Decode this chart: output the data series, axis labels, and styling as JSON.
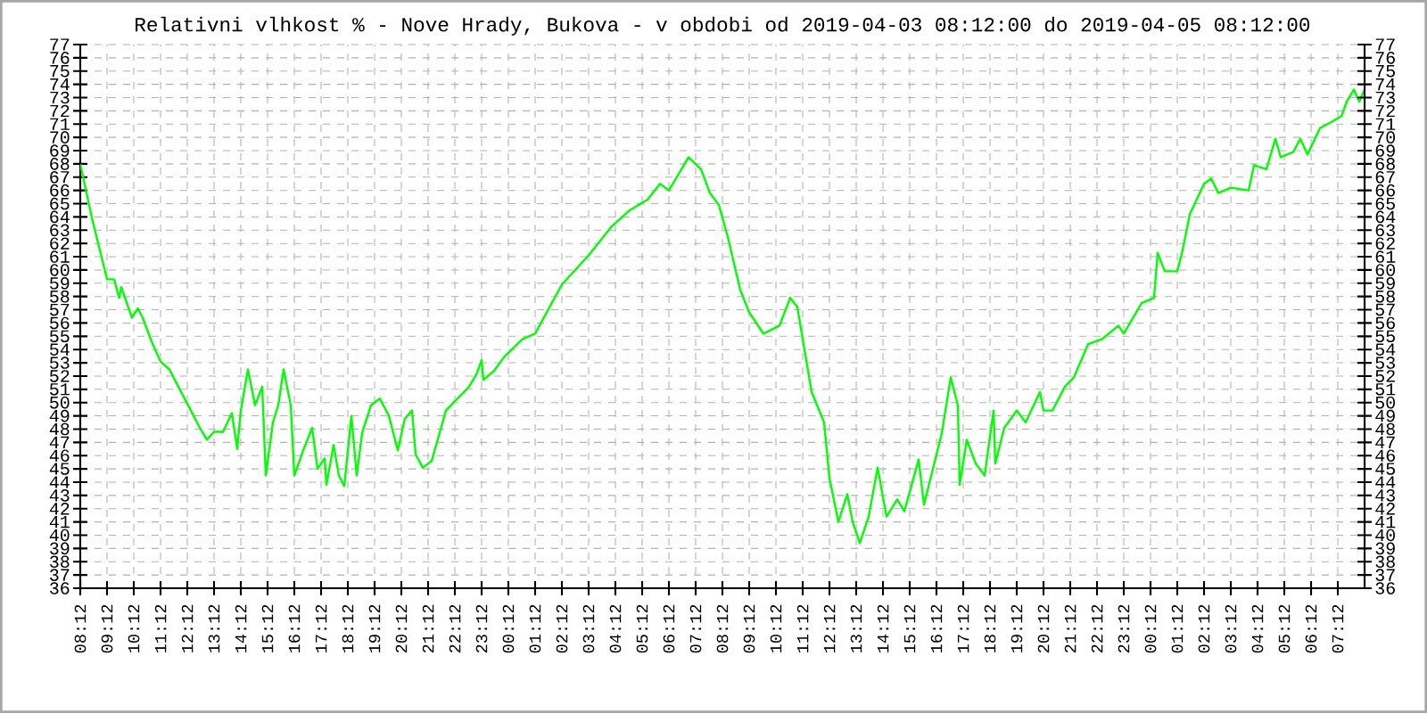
{
  "chart_data": {
    "type": "line",
    "title": "Relativni vlhkost % - Nove Hrady, Bukova - v obdobi od 2019-04-03 08:12:00 do 2019-04-05 08:12:00",
    "series": [
      {
        "color": "#00ff00",
        "x": [
          "2019-04-03T08:12",
          "2019-04-03T08:39",
          "2019-04-03T09:12",
          "2019-04-03T09:28",
          "2019-04-03T09:39",
          "2019-04-03T09:44",
          "2019-04-03T10:08",
          "2019-04-03T10:21",
          "2019-04-03T10:32",
          "2019-04-03T10:52",
          "2019-04-03T11:04",
          "2019-04-03T11:12",
          "2019-04-03T11:32",
          "2019-04-03T11:52",
          "2019-04-03T12:20",
          "2019-04-03T12:40",
          "2019-04-03T12:56",
          "2019-04-03T13:12",
          "2019-04-03T13:32",
          "2019-04-03T13:52",
          "2019-04-03T14:04",
          "2019-04-03T14:12",
          "2019-04-03T14:28",
          "2019-04-03T14:44",
          "2019-04-03T15:00",
          "2019-04-03T15:08",
          "2019-04-03T15:24",
          "2019-04-03T15:36",
          "2019-04-03T15:48",
          "2019-04-03T16:04",
          "2019-04-03T16:12",
          "2019-04-03T16:32",
          "2019-04-03T16:52",
          "2019-04-03T17:04",
          "2019-04-03T17:20",
          "2019-04-03T17:24",
          "2019-04-03T17:40",
          "2019-04-03T17:52",
          "2019-04-03T18:04",
          "2019-04-03T18:20",
          "2019-04-03T18:32",
          "2019-04-03T18:44",
          "2019-04-03T19:04",
          "2019-04-03T19:24",
          "2019-04-03T19:44",
          "2019-04-03T20:04",
          "2019-04-03T20:20",
          "2019-04-03T20:36",
          "2019-04-03T20:44",
          "2019-04-03T21:00",
          "2019-04-03T21:20",
          "2019-04-03T21:52",
          "2019-04-03T22:12",
          "2019-04-03T22:44",
          "2019-04-03T23:00",
          "2019-04-03T23:12",
          "2019-04-03T23:16",
          "2019-04-03T23:40",
          "2019-04-04T00:04",
          "2019-04-04T00:44",
          "2019-04-04T01:12",
          "2019-04-04T02:12",
          "2019-04-04T03:12",
          "2019-04-04T04:04",
          "2019-04-04T04:44",
          "2019-04-04T05:24",
          "2019-04-04T05:52",
          "2019-04-04T06:12",
          "2019-04-04T06:56",
          "2019-04-04T07:24",
          "2019-04-04T07:44",
          "2019-04-04T08:04",
          "2019-04-04T08:24",
          "2019-04-04T08:52",
          "2019-04-04T09:12",
          "2019-04-04T09:44",
          "2019-04-04T10:20",
          "2019-04-04T10:44",
          "2019-04-04T11:00",
          "2019-04-04T11:12",
          "2019-04-04T11:32",
          "2019-04-04T12:00",
          "2019-04-04T12:12",
          "2019-04-04T12:32",
          "2019-04-04T12:52",
          "2019-04-04T13:04",
          "2019-04-04T13:20",
          "2019-04-04T13:40",
          "2019-04-04T14:00",
          "2019-04-04T14:20",
          "2019-04-04T14:44",
          "2019-04-04T15:00",
          "2019-04-04T15:32",
          "2019-04-04T15:44",
          "2019-04-04T16:04",
          "2019-04-04T16:24",
          "2019-04-04T16:44",
          "2019-04-04T17:00",
          "2019-04-04T17:04",
          "2019-04-04T17:20",
          "2019-04-04T17:40",
          "2019-04-04T18:00",
          "2019-04-04T18:20",
          "2019-04-04T18:24",
          "2019-04-04T18:44",
          "2019-04-04T19:12",
          "2019-04-04T19:32",
          "2019-04-04T20:04",
          "2019-04-04T20:12",
          "2019-04-04T20:32",
          "2019-04-04T21:00",
          "2019-04-04T21:20",
          "2019-04-04T21:52",
          "2019-04-04T22:24",
          "2019-04-04T23:00",
          "2019-04-04T23:12",
          "2019-04-04T23:52",
          "2019-04-05T00:20",
          "2019-04-05T00:28",
          "2019-04-05T00:44",
          "2019-04-05T01:12",
          "2019-04-05T01:24",
          "2019-04-05T01:40",
          "2019-04-05T02:12",
          "2019-04-05T02:28",
          "2019-04-05T02:44",
          "2019-04-05T03:12",
          "2019-04-05T03:52",
          "2019-04-05T04:04",
          "2019-04-05T04:32",
          "2019-04-05T04:52",
          "2019-04-05T05:04",
          "2019-04-05T05:32",
          "2019-04-05T05:48",
          "2019-04-05T06:04",
          "2019-04-05T06:32",
          "2019-04-05T07:00",
          "2019-04-05T07:20",
          "2019-04-05T07:32",
          "2019-04-05T07:48",
          "2019-04-05T08:00",
          "2019-04-05T08:12"
        ],
        "values": [
          68.0,
          63.8,
          59.3,
          59.3,
          57.9,
          58.7,
          56.4,
          57.1,
          56.4,
          54.6,
          53.7,
          53.1,
          52.5,
          51.2,
          49.4,
          48.1,
          47.2,
          47.8,
          47.8,
          49.2,
          46.5,
          49.4,
          52.5,
          49.8,
          51.2,
          44.5,
          48.5,
          49.8,
          52.5,
          49.8,
          44.5,
          46.4,
          48.1,
          45.0,
          45.8,
          43.8,
          46.8,
          44.5,
          43.7,
          49.0,
          44.5,
          47.7,
          49.8,
          50.3,
          49.0,
          46.4,
          48.8,
          49.4,
          46.1,
          45.1,
          45.6,
          49.4,
          50.1,
          51.2,
          52.1,
          53.2,
          51.7,
          52.4,
          53.5,
          54.8,
          55.2,
          58.9,
          61.1,
          63.3,
          64.5,
          65.3,
          66.5,
          66.0,
          68.5,
          67.6,
          65.8,
          64.9,
          62.5,
          58.5,
          56.8,
          55.2,
          55.8,
          57.9,
          57.2,
          54.8,
          50.8,
          48.5,
          44.3,
          41.0,
          43.1,
          41.0,
          39.4,
          41.4,
          45.1,
          41.4,
          42.7,
          41.8,
          45.7,
          42.3,
          45.0,
          47.7,
          51.9,
          49.8,
          43.8,
          47.2,
          45.4,
          44.5,
          49.4,
          45.4,
          48.1,
          49.4,
          48.5,
          50.8,
          49.4,
          49.4,
          51.2,
          51.9,
          54.4,
          54.8,
          55.8,
          55.2,
          57.5,
          57.9,
          61.3,
          59.9,
          59.9,
          61.5,
          64.2,
          66.5,
          66.9,
          65.8,
          66.2,
          66.0,
          67.9,
          67.6,
          69.9,
          68.5,
          68.9,
          69.9,
          68.7,
          70.7,
          71.2,
          71.6,
          72.7,
          73.6,
          72.7,
          73.6
        ]
      }
    ],
    "xlim": [
      "2019-04-03T08:12",
      "2019-04-05T08:12"
    ],
    "xticks": [
      {
        "value": "2019-04-03T08:12",
        "label": "08:12"
      },
      {
        "value": "2019-04-03T09:12",
        "label": "09:12"
      },
      {
        "value": "2019-04-03T10:12",
        "label": "10:12"
      },
      {
        "value": "2019-04-03T11:12",
        "label": "11:12"
      },
      {
        "value": "2019-04-03T12:12",
        "label": "12:12"
      },
      {
        "value": "2019-04-03T13:12",
        "label": "13:12"
      },
      {
        "value": "2019-04-03T14:12",
        "label": "14:12"
      },
      {
        "value": "2019-04-03T15:12",
        "label": "15:12"
      },
      {
        "value": "2019-04-03T16:12",
        "label": "16:12"
      },
      {
        "value": "2019-04-03T17:12",
        "label": "17:12"
      },
      {
        "value": "2019-04-03T18:12",
        "label": "18:12"
      },
      {
        "value": "2019-04-03T19:12",
        "label": "19:12"
      },
      {
        "value": "2019-04-03T20:12",
        "label": "20:12"
      },
      {
        "value": "2019-04-03T21:12",
        "label": "21:12"
      },
      {
        "value": "2019-04-03T22:12",
        "label": "22:12"
      },
      {
        "value": "2019-04-03T23:12",
        "label": "23:12"
      },
      {
        "value": "2019-04-04T00:12",
        "label": "00:12"
      },
      {
        "value": "2019-04-04T01:12",
        "label": "01:12"
      },
      {
        "value": "2019-04-04T02:12",
        "label": "02:12"
      },
      {
        "value": "2019-04-04T03:12",
        "label": "03:12"
      },
      {
        "value": "2019-04-04T04:12",
        "label": "04:12"
      },
      {
        "value": "2019-04-04T05:12",
        "label": "05:12"
      },
      {
        "value": "2019-04-04T06:12",
        "label": "06:12"
      },
      {
        "value": "2019-04-04T07:12",
        "label": "07:12"
      },
      {
        "value": "2019-04-04T08:12",
        "label": "08:12"
      },
      {
        "value": "2019-04-04T09:12",
        "label": "09:12"
      },
      {
        "value": "2019-04-04T10:12",
        "label": "10:12"
      },
      {
        "value": "2019-04-04T11:12",
        "label": "11:12"
      },
      {
        "value": "2019-04-04T12:12",
        "label": "12:12"
      },
      {
        "value": "2019-04-04T13:12",
        "label": "13:12"
      },
      {
        "value": "2019-04-04T14:12",
        "label": "14:12"
      },
      {
        "value": "2019-04-04T15:12",
        "label": "15:12"
      },
      {
        "value": "2019-04-04T16:12",
        "label": "16:12"
      },
      {
        "value": "2019-04-04T17:12",
        "label": "17:12"
      },
      {
        "value": "2019-04-04T18:12",
        "label": "18:12"
      },
      {
        "value": "2019-04-04T19:12",
        "label": "19:12"
      },
      {
        "value": "2019-04-04T20:12",
        "label": "20:12"
      },
      {
        "value": "2019-04-04T21:12",
        "label": "21:12"
      },
      {
        "value": "2019-04-04T22:12",
        "label": "22:12"
      },
      {
        "value": "2019-04-04T23:12",
        "label": "23:12"
      },
      {
        "value": "2019-04-05T00:12",
        "label": "00:12"
      },
      {
        "value": "2019-04-05T01:12",
        "label": "01:12"
      },
      {
        "value": "2019-04-05T02:12",
        "label": "02:12"
      },
      {
        "value": "2019-04-05T03:12",
        "label": "03:12"
      },
      {
        "value": "2019-04-05T04:12",
        "label": "04:12"
      },
      {
        "value": "2019-04-05T05:12",
        "label": "05:12"
      },
      {
        "value": "2019-04-05T06:12",
        "label": "06:12"
      },
      {
        "value": "2019-04-05T07:12",
        "label": "07:12"
      }
    ],
    "ylim": [
      36,
      77
    ],
    "yticks": [
      36,
      37,
      38,
      39,
      40,
      41,
      42,
      43,
      44,
      45,
      46,
      47,
      48,
      49,
      50,
      51,
      52,
      53,
      54,
      55,
      56,
      57,
      58,
      59,
      60,
      61,
      62,
      63,
      64,
      65,
      66,
      67,
      68,
      69,
      70,
      71,
      72,
      73,
      74,
      75,
      76,
      77
    ],
    "y2lim": [
      36,
      77
    ],
    "y2ticks": [
      36,
      37,
      38,
      39,
      40,
      41,
      42,
      43,
      44,
      45,
      46,
      47,
      48,
      49,
      50,
      51,
      52,
      53,
      54,
      55,
      56,
      57,
      58,
      59,
      60,
      61,
      62,
      63,
      64,
      65,
      66,
      67,
      68,
      69,
      70,
      71,
      72,
      73,
      74,
      75,
      76,
      77
    ],
    "grid": true,
    "line_style": "solid",
    "marker": "none"
  }
}
